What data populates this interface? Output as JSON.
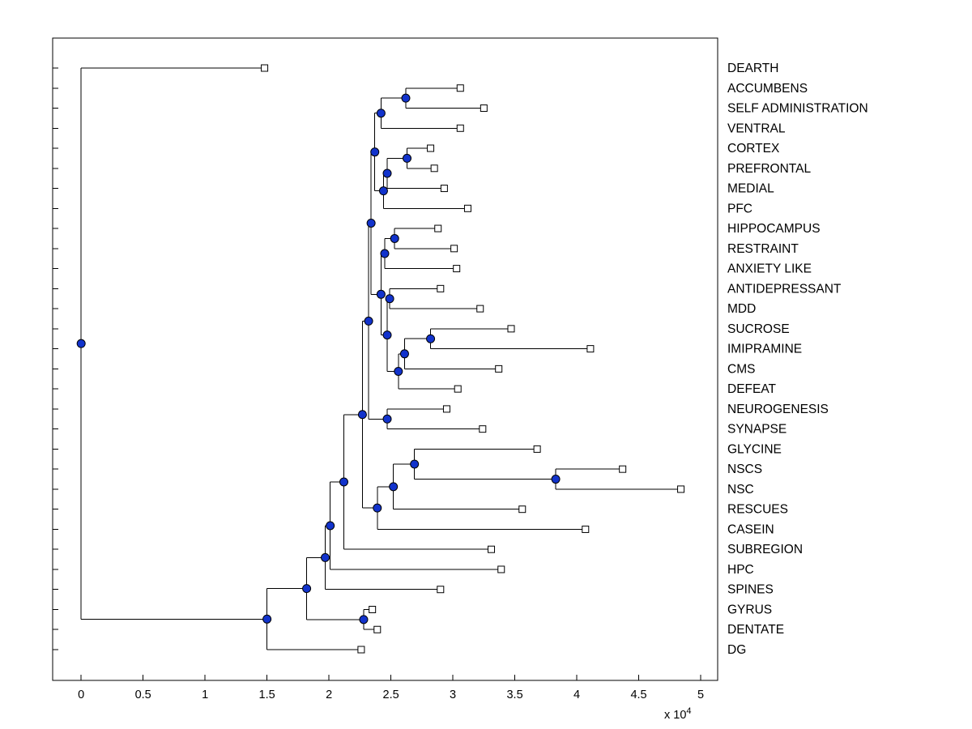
{
  "figure": {
    "background": "#ffffff",
    "title": ""
  },
  "chart_data": {
    "type": "dendrogram",
    "orientation": "root-left-leaves-right",
    "title": "",
    "xlabel": "",
    "ylabel": "",
    "grid": false,
    "legend": null,
    "x_axis": {
      "ticks": [
        "0",
        "0.5",
        "1",
        "1.5",
        "2",
        "2.5",
        "3",
        "3.5",
        "4",
        "4.5",
        "5"
      ],
      "tick_values": [
        0,
        5000,
        10000,
        15000,
        20000,
        25000,
        30000,
        35000,
        40000,
        45000,
        50000
      ],
      "xlim": [
        -2300,
        51370
      ],
      "scale_prefix": "x 10",
      "scale_exponent": "4"
    },
    "n_leaves": 30,
    "leaves": [
      {
        "label": "DEARTH",
        "distance": 14800
      },
      {
        "label": "ACCUMBENS",
        "distance": 30600
      },
      {
        "label": "SELF ADMINISTRATION",
        "distance": 32500
      },
      {
        "label": "VENTRAL",
        "distance": 30600
      },
      {
        "label": "CORTEX",
        "distance": 28200
      },
      {
        "label": "PREFRONTAL",
        "distance": 28500
      },
      {
        "label": "MEDIAL",
        "distance": 29300
      },
      {
        "label": "PFC",
        "distance": 31200
      },
      {
        "label": "HIPPOCAMPUS",
        "distance": 28800
      },
      {
        "label": "RESTRAINT",
        "distance": 30100
      },
      {
        "label": "ANXIETY LIKE",
        "distance": 30300
      },
      {
        "label": "ANTIDEPRESSANT",
        "distance": 29000
      },
      {
        "label": "MDD",
        "distance": 32200
      },
      {
        "label": "SUCROSE",
        "distance": 34700
      },
      {
        "label": "IMIPRAMINE",
        "distance": 41100
      },
      {
        "label": "CMS",
        "distance": 33700
      },
      {
        "label": "DEFEAT",
        "distance": 30400
      },
      {
        "label": "NEUROGENESIS",
        "distance": 29500
      },
      {
        "label": "SYNAPSE",
        "distance": 32400
      },
      {
        "label": "GLYCINE",
        "distance": 36800
      },
      {
        "label": "NSCS",
        "distance": 43700
      },
      {
        "label": "NSC",
        "distance": 48400
      },
      {
        "label": "RESCUES",
        "distance": 35600
      },
      {
        "label": "CASEIN",
        "distance": 40700
      },
      {
        "label": "SUBREGION",
        "distance": 33100
      },
      {
        "label": "HPC",
        "distance": 33900
      },
      {
        "label": "SPINES",
        "distance": 29000
      },
      {
        "label": "GYRUS",
        "distance": 23500
      },
      {
        "label": "DENTATE",
        "distance": 23900
      },
      {
        "label": "DG",
        "distance": 22600
      }
    ],
    "tree": {
      "d": 0,
      "children": [
        {
          "label": "DEARTH",
          "d": 14800
        },
        {
          "d": 15000,
          "children": [
            {
              "d": 18200,
              "children": [
                {
                  "d": 19700,
                  "children": [
                    {
                      "d": 20100,
                      "children": [
                        {
                          "d": 21200,
                          "children": [
                            {
                              "d": 22700,
                              "children": [
                                {
                                  "d": 23200,
                                  "children": [
                                    {
                                      "d": 23400,
                                      "children": [
                                        {
                                          "d": 23700,
                                          "children": [
                                            {
                                              "d": 24200,
                                              "children": [
                                                {
                                                  "d": 26200,
                                                  "children": [
                                                    {
                                                      "label": "ACCUMBENS",
                                                      "d": 30600
                                                    },
                                                    {
                                                      "label": "SELF ADMINISTRATION",
                                                      "d": 32500
                                                    }
                                                  ]
                                                },
                                                {
                                                  "label": "VENTRAL",
                                                  "d": 30600
                                                }
                                              ]
                                            },
                                            {
                                              "d": 24400,
                                              "children": [
                                                {
                                                  "d": 24700,
                                                  "children": [
                                                    {
                                                      "d": 26300,
                                                      "children": [
                                                        {
                                                          "label": "CORTEX",
                                                          "d": 28200
                                                        },
                                                        {
                                                          "label": "PREFRONTAL",
                                                          "d": 28500
                                                        }
                                                      ]
                                                    },
                                                    {
                                                      "label": "MEDIAL",
                                                      "d": 29300
                                                    }
                                                  ]
                                                },
                                                {
                                                  "label": "PFC",
                                                  "d": 31200
                                                }
                                              ]
                                            }
                                          ]
                                        },
                                        {
                                          "d": 24200,
                                          "children": [
                                            {
                                              "d": 24500,
                                              "children": [
                                                {
                                                  "d": 25300,
                                                  "children": [
                                                    {
                                                      "label": "HIPPOCAMPUS",
                                                      "d": 28800
                                                    },
                                                    {
                                                      "label": "RESTRAINT",
                                                      "d": 30100
                                                    }
                                                  ]
                                                },
                                                {
                                                  "label": "ANXIETY LIKE",
                                                  "d": 30300
                                                }
                                              ]
                                            },
                                            {
                                              "d": 24700,
                                              "children": [
                                                {
                                                  "d": 24900,
                                                  "children": [
                                                    {
                                                      "label": "ANTIDEPRESSANT",
                                                      "d": 29000
                                                    },
                                                    {
                                                      "label": "MDD",
                                                      "d": 32200
                                                    }
                                                  ]
                                                },
                                                {
                                                  "d": 25600,
                                                  "children": [
                                                    {
                                                      "d": 26100,
                                                      "children": [
                                                        {
                                                          "d": 28200,
                                                          "children": [
                                                            {
                                                              "label": "SUCROSE",
                                                              "d": 34700
                                                            },
                                                            {
                                                              "label": "IMIPRAMINE",
                                                              "d": 41100
                                                            }
                                                          ]
                                                        },
                                                        {
                                                          "label": "CMS",
                                                          "d": 33700
                                                        }
                                                      ]
                                                    },
                                                    {
                                                      "label": "DEFEAT",
                                                      "d": 30400
                                                    }
                                                  ]
                                                }
                                              ]
                                            }
                                          ]
                                        }
                                      ]
                                    },
                                    {
                                      "d": 24700,
                                      "children": [
                                        {
                                          "label": "NEUROGENESIS",
                                          "d": 29500
                                        },
                                        {
                                          "label": "SYNAPSE",
                                          "d": 32400
                                        }
                                      ]
                                    }
                                  ]
                                },
                                {
                                  "d": 23900,
                                  "children": [
                                    {
                                      "d": 25200,
                                      "children": [
                                        {
                                          "d": 26900,
                                          "children": [
                                            {
                                              "label": "GLYCINE",
                                              "d": 36800
                                            },
                                            {
                                              "d": 38300,
                                              "children": [
                                                {
                                                  "label": "NSCS",
                                                  "d": 43700
                                                },
                                                {
                                                  "label": "NSC",
                                                  "d": 48400
                                                }
                                              ]
                                            }
                                          ]
                                        },
                                        {
                                          "label": "RESCUES",
                                          "d": 35600
                                        }
                                      ]
                                    },
                                    {
                                      "label": "CASEIN",
                                      "d": 40700
                                    }
                                  ]
                                }
                              ]
                            },
                            {
                              "label": "SUBREGION",
                              "d": 33100
                            }
                          ]
                        },
                        {
                          "label": "HPC",
                          "d": 33900
                        }
                      ]
                    },
                    {
                      "label": "SPINES",
                      "d": 29000
                    }
                  ]
                },
                {
                  "d": 22800,
                  "children": [
                    {
                      "label": "GYRUS",
                      "d": 23500
                    },
                    {
                      "label": "DENTATE",
                      "d": 23900
                    }
                  ]
                }
              ]
            },
            {
              "label": "DG",
              "d": 22600
            }
          ]
        }
      ]
    },
    "style": {
      "line_color": "#000000",
      "node_marker_color": "#1233cc",
      "node_marker_edge": "#000000",
      "leaf_marker_fill": "#ffffff",
      "leaf_marker_edge": "#000000"
    }
  }
}
